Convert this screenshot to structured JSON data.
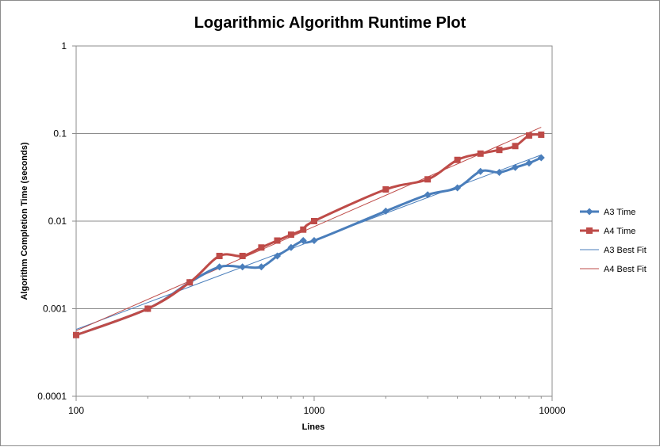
{
  "chart_data": {
    "type": "line",
    "title": "Logarithmic Algorithm Runtime Plot",
    "xlabel": "Lines",
    "ylabel": "Algorithm Completion Time (seconds)",
    "x_scale": "log",
    "y_scale": "log",
    "xlim": [
      100,
      10000
    ],
    "ylim": [
      0.0001,
      1
    ],
    "x_ticks": [
      "100",
      "1000",
      "10000"
    ],
    "y_ticks": [
      "0.0001",
      "0.001",
      "0.01",
      "0.1",
      "1"
    ],
    "grid": "horizontal major",
    "legend": "right",
    "series": [
      {
        "name": "A3 Time",
        "color": "#4a7ebb",
        "marker": "diamond",
        "x": [
          100,
          200,
          300,
          400,
          500,
          600,
          700,
          800,
          900,
          1000,
          2000,
          3000,
          4000,
          5000,
          6000,
          7000,
          8000,
          9000
        ],
        "y": [
          0.0005,
          0.001,
          0.002,
          0.003,
          0.003,
          0.003,
          0.004,
          0.005,
          0.006,
          0.006,
          0.013,
          0.02,
          0.024,
          0.037,
          0.036,
          0.041,
          0.046,
          0.053
        ]
      },
      {
        "name": "A4 Time",
        "color": "#be4b48",
        "marker": "square",
        "x": [
          100,
          200,
          300,
          400,
          500,
          600,
          700,
          800,
          900,
          1000,
          2000,
          3000,
          4000,
          5000,
          6000,
          7000,
          8000,
          9000
        ],
        "y": [
          0.0005,
          0.001,
          0.002,
          0.004,
          0.004,
          0.005,
          0.006,
          0.007,
          0.008,
          0.01,
          0.023,
          0.03,
          0.05,
          0.059,
          0.065,
          0.072,
          0.095,
          0.097
        ]
      },
      {
        "name": "A3 Best Fit",
        "color": "#4a7ebb",
        "marker": "none",
        "x": [
          100,
          9000
        ],
        "y": [
          0.00058,
          0.057
        ]
      },
      {
        "name": "A4 Best Fit",
        "color": "#be4b48",
        "marker": "none",
        "x": [
          100,
          9000
        ],
        "y": [
          0.00056,
          0.118
        ]
      }
    ]
  }
}
